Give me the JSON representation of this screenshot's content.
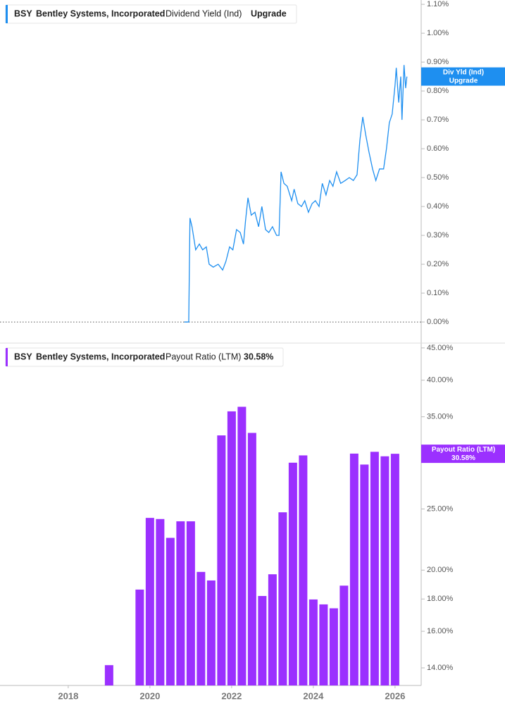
{
  "chart_data": [
    {
      "type": "line",
      "ticker": "BSY",
      "company": "Bentley Systems, Incorporated",
      "series": [
        {
          "name": "Dividend Yield (Ind)",
          "color": "#1e8ff0",
          "x": [
            2020.84,
            2020.95,
            2020.98,
            2021.03,
            2021.12,
            2021.21,
            2021.29,
            2021.38,
            2021.45,
            2021.55,
            2021.67,
            2021.78,
            2021.86,
            2021.95,
            2022.03,
            2022.12,
            2022.21,
            2022.29,
            2022.34,
            2022.4,
            2022.48,
            2022.57,
            2022.66,
            2022.74,
            2022.83,
            2022.91,
            2023.0,
            2023.1,
            2023.16,
            2023.21,
            2023.28,
            2023.36,
            2023.47,
            2023.53,
            2023.62,
            2023.71,
            2023.79,
            2023.88,
            2023.97,
            2024.05,
            2024.14,
            2024.22,
            2024.31,
            2024.4,
            2024.48,
            2024.57,
            2024.67,
            2024.78,
            2024.88,
            2024.98,
            2025.07,
            2025.14,
            2025.21,
            2025.28,
            2025.36,
            2025.45,
            2025.53,
            2025.62,
            2025.72,
            2025.79,
            2025.86,
            2025.93,
            2026.0,
            2026.03,
            2026.09,
            2026.14,
            2026.17,
            2026.22,
            2026.26,
            2026.29
          ],
          "values": [
            0,
            0,
            0.36,
            0.33,
            0.25,
            0.27,
            0.25,
            0.26,
            0.2,
            0.19,
            0.2,
            0.18,
            0.21,
            0.26,
            0.25,
            0.32,
            0.31,
            0.27,
            0.35,
            0.43,
            0.37,
            0.38,
            0.33,
            0.4,
            0.32,
            0.31,
            0.33,
            0.3,
            0.3,
            0.52,
            0.48,
            0.47,
            0.42,
            0.46,
            0.41,
            0.4,
            0.42,
            0.38,
            0.41,
            0.42,
            0.4,
            0.48,
            0.44,
            0.49,
            0.47,
            0.52,
            0.48,
            0.49,
            0.5,
            0.49,
            0.51,
            0.63,
            0.71,
            0.65,
            0.59,
            0.53,
            0.49,
            0.53,
            0.53,
            0.6,
            0.69,
            0.72,
            0.82,
            0.88,
            0.76,
            0.85,
            0.7,
            0.89,
            0.81,
            0.85
          ]
        }
      ],
      "current_label": "Upgrade",
      "flag_label": "Div Yld (Ind)",
      "flag_value": "Upgrade",
      "zero_line": true,
      "xlim": [
        2016.33,
        2026.64
      ],
      "ylim": [
        -0.073,
        1.115
      ],
      "yticks": [
        {
          "value": 0,
          "label": "0.00%"
        },
        {
          "value": 0.1,
          "label": "0.10%"
        },
        {
          "value": 0.2,
          "label": "0.20%"
        },
        {
          "value": 0.3,
          "label": "0.30%"
        },
        {
          "value": 0.4,
          "label": "0.40%"
        },
        {
          "value": 0.5,
          "label": "0.50%"
        },
        {
          "value": 0.6,
          "label": "0.60%"
        },
        {
          "value": 0.7,
          "label": "0.70%"
        },
        {
          "value": 0.8,
          "label": "0.80%"
        },
        {
          "value": 0.9,
          "label": "0.90%"
        },
        {
          "value": 1.0,
          "label": "1.00%"
        },
        {
          "value": 1.1,
          "label": "1.10%"
        }
      ]
    },
    {
      "type": "bar",
      "ticker": "BSY",
      "company": "Bentley Systems, Incorporated",
      "series": [
        {
          "name": "Payout Ratio (LTM)",
          "color": "#9b30ff",
          "x": [
            2019.0,
            2019.75,
            2020.0,
            2020.25,
            2020.5,
            2020.75,
            2021.0,
            2021.25,
            2021.5,
            2021.75,
            2022.0,
            2022.25,
            2022.5,
            2022.75,
            2023.0,
            2023.25,
            2023.5,
            2023.75,
            2024.0,
            2024.25,
            2024.5,
            2024.75,
            2025.0,
            2025.25,
            2025.5,
            2025.75,
            2026.0
          ],
          "values": [
            14.14,
            18.63,
            24.2,
            24.1,
            22.5,
            23.9,
            23.9,
            19.87,
            19.26,
            32.7,
            35.7,
            36.3,
            33.0,
            18.2,
            19.7,
            24.7,
            29.6,
            30.4,
            17.97,
            17.65,
            17.4,
            18.9,
            30.6,
            29.4,
            30.8,
            30.3,
            30.58
          ]
        }
      ],
      "current_label": "30.58%",
      "flag_label": "Payout Ratio (LTM)",
      "flag_value": "30.58%",
      "log_scale": true,
      "xlim": [
        2016.33,
        2026.64
      ],
      "xticks": [
        2018,
        2020,
        2022,
        2024,
        2026
      ],
      "ylim": [
        13.13,
        45.8
      ],
      "yticks": [
        {
          "value": 14,
          "label": "14.00%"
        },
        {
          "value": 16,
          "label": "16.00%"
        },
        {
          "value": 18,
          "label": "18.00%"
        },
        {
          "value": 20,
          "label": "20.00%"
        },
        {
          "value": 25,
          "label": "25.00%"
        },
        {
          "value": 30,
          "label": "30.00%"
        },
        {
          "value": 35,
          "label": "35.00%"
        },
        {
          "value": 40,
          "label": "40.00%"
        },
        {
          "value": 45,
          "label": "45.00%"
        }
      ]
    }
  ]
}
